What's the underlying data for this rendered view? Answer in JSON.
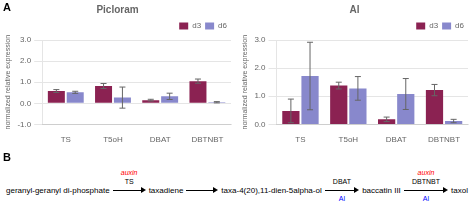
{
  "chart_data": [
    {
      "type": "bar",
      "title": "Picloram",
      "categories": [
        "TS",
        "T5oH",
        "DBAT",
        "DBTNBT"
      ],
      "series": [
        {
          "name": "d3",
          "color": "#8B2252",
          "values": [
            0.58,
            0.82,
            0.15,
            1.05
          ],
          "errors": [
            0.07,
            0.12,
            0.04,
            0.1
          ]
        },
        {
          "name": "d6",
          "color": "#8888CC",
          "values": [
            0.52,
            0.27,
            0.33,
            0.05
          ],
          "errors": [
            0.05,
            0.5,
            0.15,
            0.03
          ]
        }
      ],
      "ylabel": "normalized relative expression",
      "ylim": [
        -1.0,
        3.0
      ],
      "yticks": [
        {
          "value": -1.0,
          "label": "-1.0"
        },
        {
          "value": 0.0,
          "label": "0.0"
        },
        {
          "value": 1.0,
          "label": "1.0"
        },
        {
          "value": 2.0,
          "label": "2.0"
        },
        {
          "value": 3.0,
          "label": "3.0"
        }
      ],
      "grid": true,
      "legend": "upper right",
      "annotations": [
        {
          "text": "A"
        }
      ]
    },
    {
      "type": "bar",
      "title": "Al",
      "categories": [
        "TS",
        "T5oH",
        "DBAT",
        "DBTNBT"
      ],
      "series": [
        {
          "name": "d3",
          "color": "#8B2252",
          "values": [
            0.48,
            1.38,
            0.18,
            1.22
          ],
          "errors": [
            0.42,
            0.12,
            0.08,
            0.2
          ]
        },
        {
          "name": "d6",
          "color": "#8888CC",
          "values": [
            1.72,
            1.28,
            1.08,
            0.12
          ],
          "errors": [
            1.2,
            0.42,
            0.55,
            0.06
          ]
        }
      ],
      "ylabel": "normalized relative expression",
      "ylim": [
        0.0,
        3.0
      ],
      "yticks": [
        {
          "value": 0.0,
          "label": "0.0"
        },
        {
          "value": 1.0,
          "label": "1.0"
        },
        {
          "value": 2.0,
          "label": "2.0"
        },
        {
          "value": 3.0,
          "label": "3.0"
        }
      ],
      "grid": true,
      "legend": "upper right"
    },
    {
      "type": "pathway",
      "categories": [
        "geranyl-geranyl di-phosphate",
        "taxadiene",
        "taxa-4(20),11-dien-5alpha-ol",
        "baccatin III",
        "taxol"
      ],
      "annotations": [
        {
          "text": "B"
        },
        {
          "text": "TS"
        },
        {
          "text": "DBAT"
        },
        {
          "text": "DBTNBT"
        },
        {
          "text": "auxin",
          "color": "red"
        },
        {
          "text": "auxin",
          "color": "red"
        },
        {
          "text": "Al",
          "color": "blue"
        },
        {
          "text": "Al",
          "color": "blue"
        }
      ]
    }
  ]
}
